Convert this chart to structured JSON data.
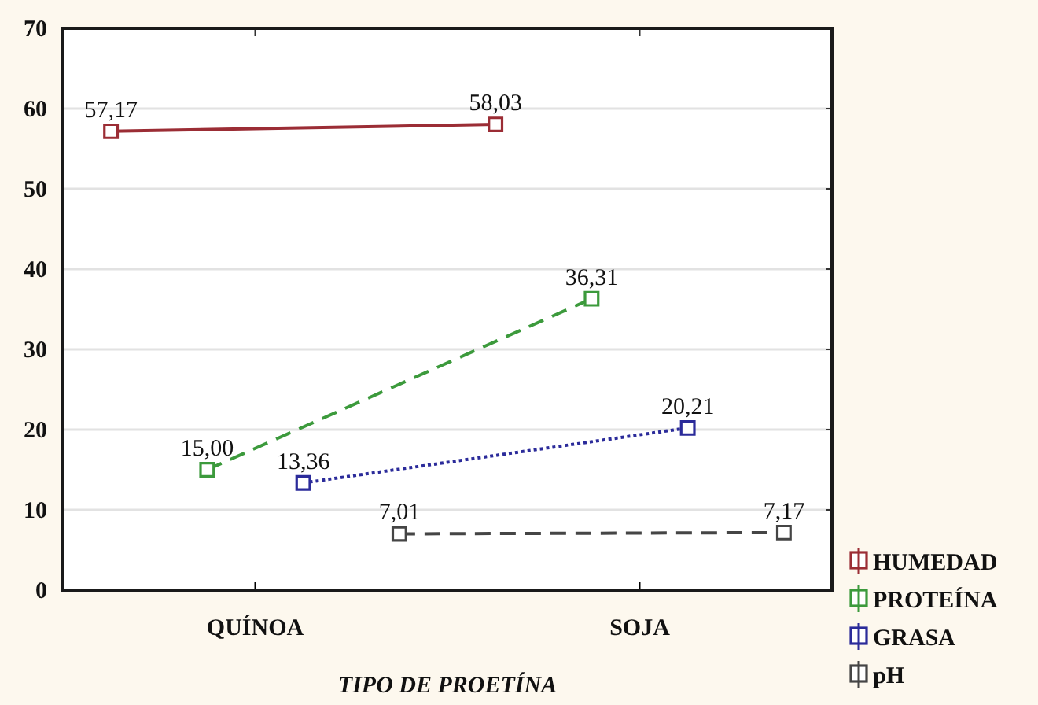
{
  "chart_data": {
    "type": "line",
    "xlabel": "TIPO DE PROETÍNA",
    "categories": [
      "QUÍNOA",
      "SOJA"
    ],
    "series": [
      {
        "name": "HUMEDAD",
        "color": "#9b2d35",
        "values": [
          57.17,
          58.03
        ],
        "value_labels": [
          "57,17",
          "58,03"
        ],
        "line_style": "solid"
      },
      {
        "name": "PROTEÍNA",
        "color": "#3c9a3c",
        "values": [
          15.0,
          36.31
        ],
        "value_labels": [
          "15,00",
          "36,31"
        ],
        "line_style": "dashed"
      },
      {
        "name": "GRASA",
        "color": "#2b2b9a",
        "values": [
          13.36,
          20.21
        ],
        "value_labels": [
          "13,36",
          "20,21"
        ],
        "line_style": "dotted"
      },
      {
        "name": "pH",
        "color": "#454545",
        "values": [
          7.01,
          7.17
        ],
        "value_labels": [
          "7,01",
          "7,17"
        ],
        "line_style": "dashed"
      }
    ],
    "ylim": [
      0,
      70
    ],
    "yticks": [
      0,
      10,
      20,
      30,
      40,
      50,
      60,
      70
    ],
    "grid": "y",
    "legend": "bottom right",
    "marker": "square"
  }
}
